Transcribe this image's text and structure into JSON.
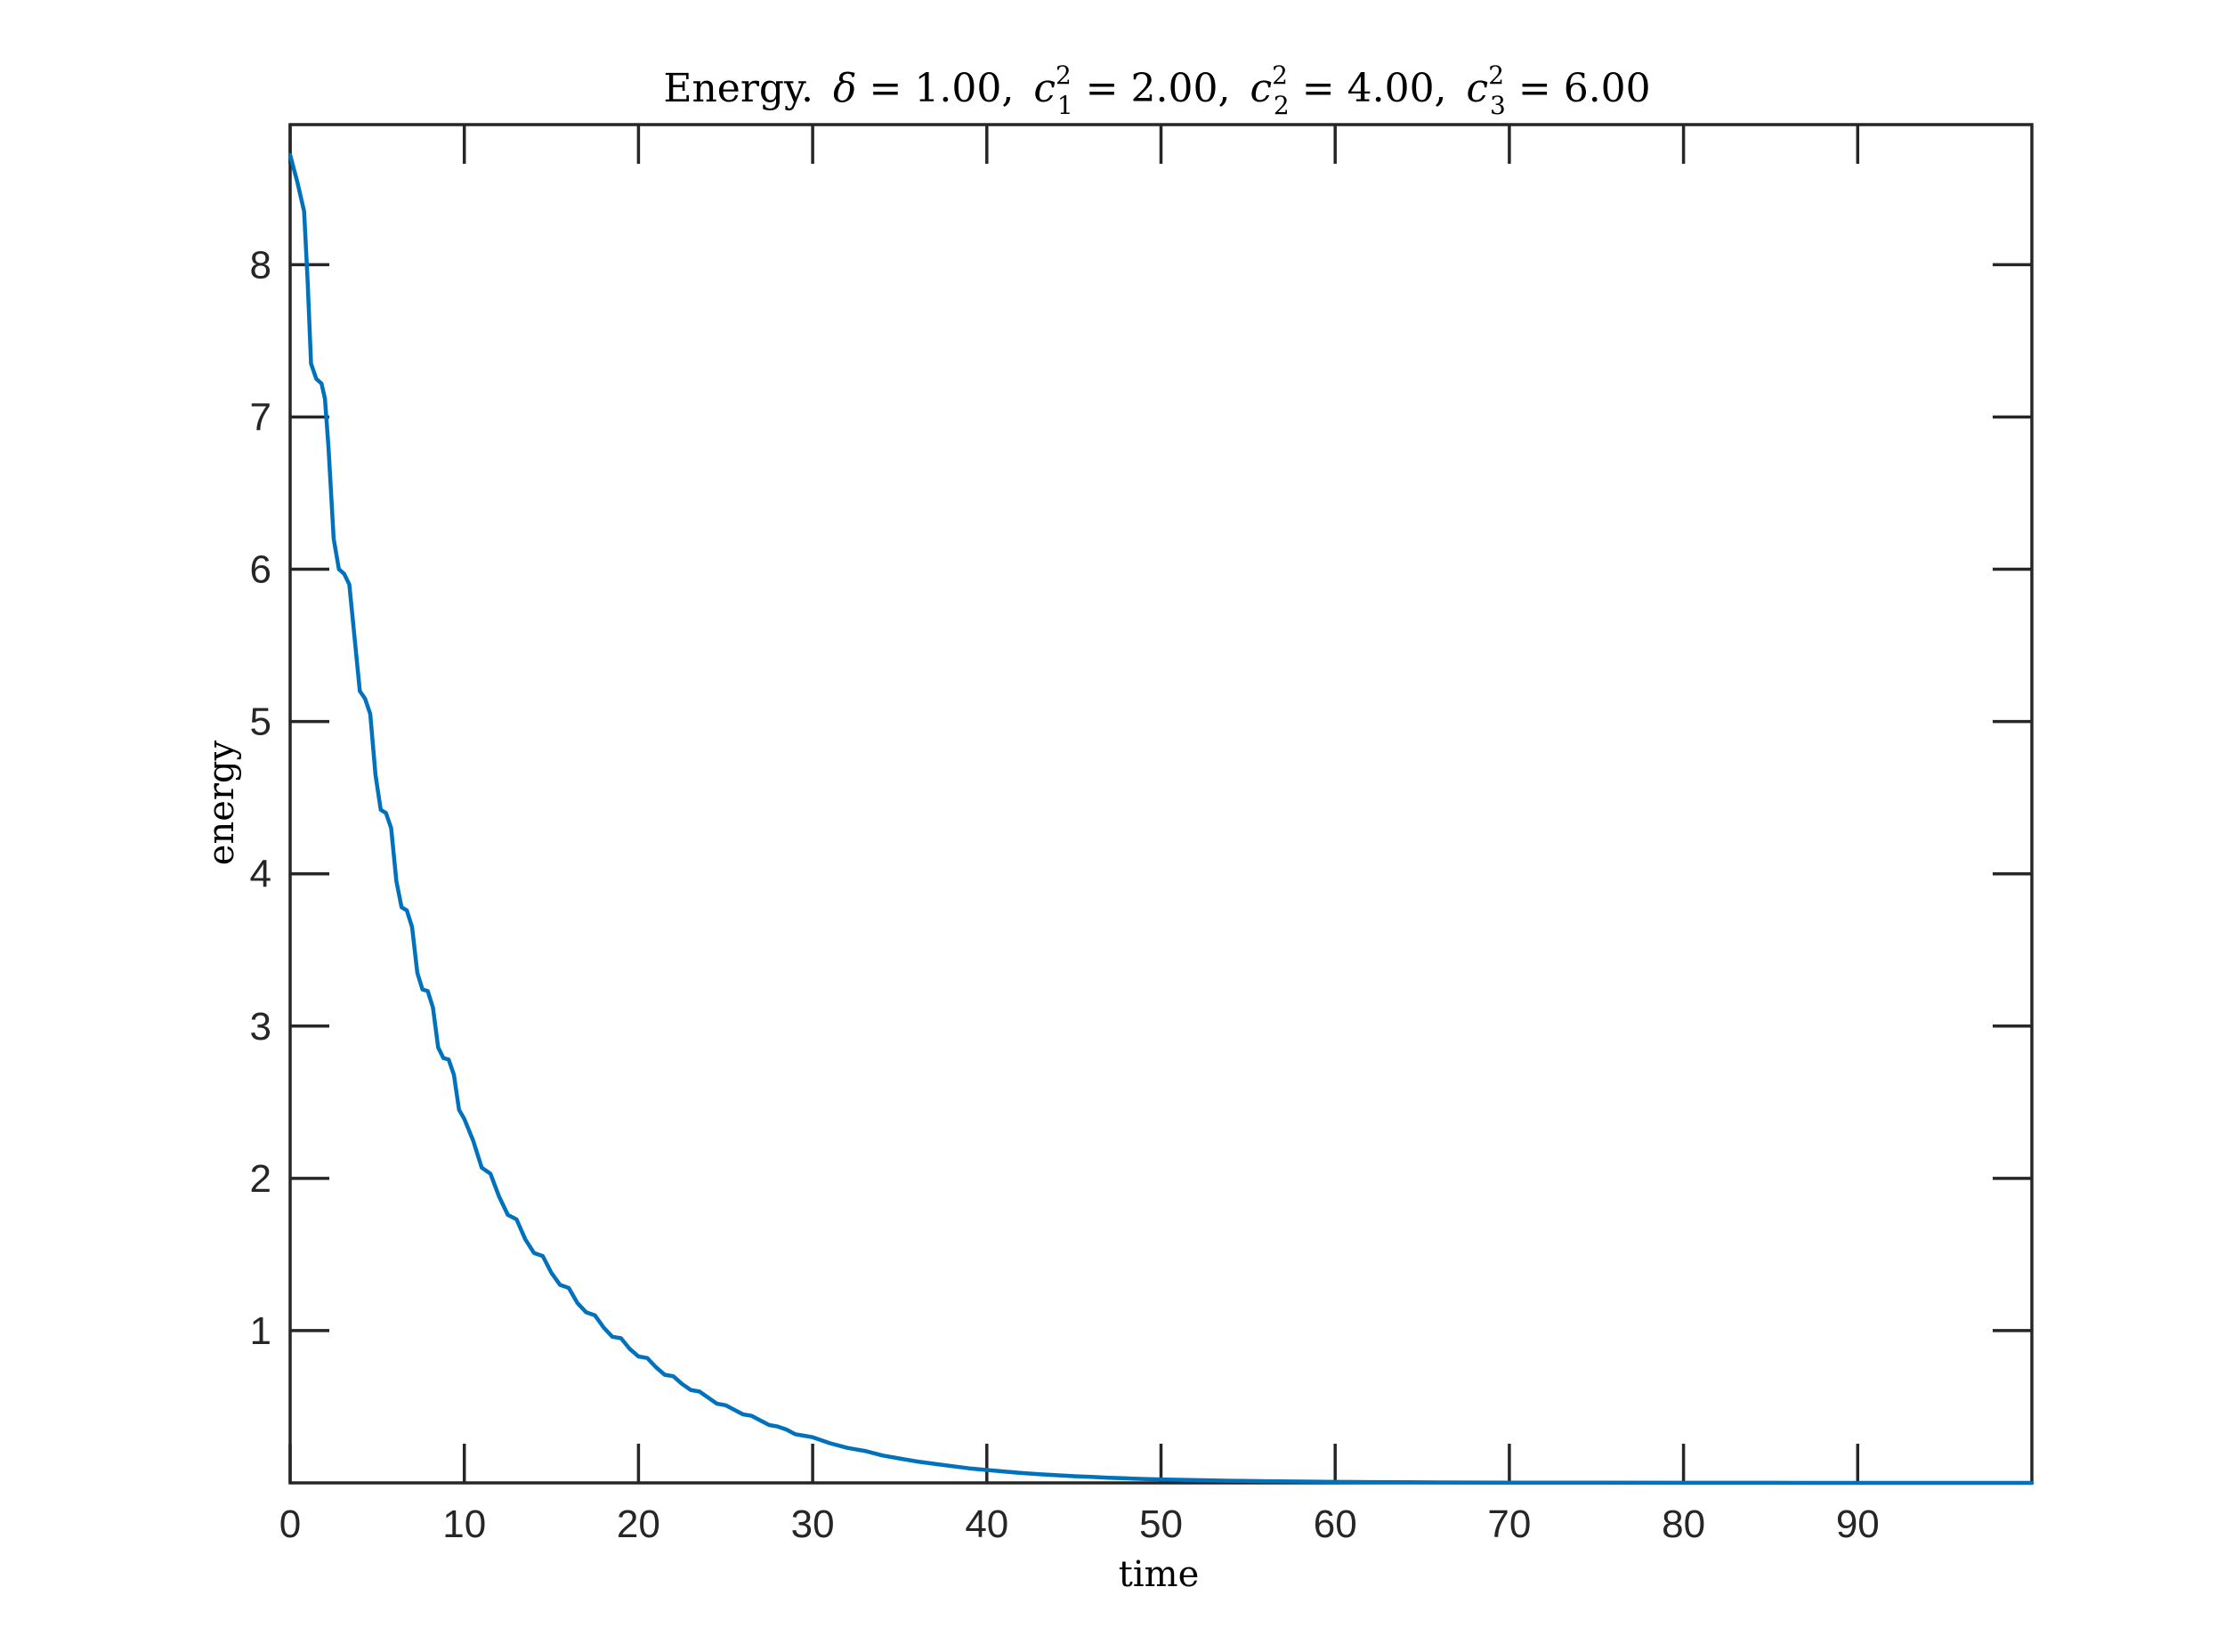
{
  "chart_data": {
    "type": "line",
    "title": {
      "lead": "Energy.",
      "parts": [
        {
          "sym": "δ",
          "sup": "",
          "sub": "",
          "eq": " = 1.00,"
        },
        {
          "sym": "c",
          "sup": "2",
          "sub": "1",
          "eq": " = 2.00,"
        },
        {
          "sym": "c",
          "sup": "2",
          "sub": "2",
          "eq": " = 4.00,"
        },
        {
          "sym": "c",
          "sup": "2",
          "sub": "3",
          "eq": " = 6.00"
        }
      ]
    },
    "xlabel": "time",
    "ylabel": "energy",
    "xlim": [
      0,
      100
    ],
    "ylim": [
      0,
      8.92
    ],
    "xticks": [
      0,
      10,
      20,
      30,
      40,
      50,
      60,
      70,
      80,
      90
    ],
    "xtick_labels": [
      "0",
      "10",
      "20",
      "30",
      "40",
      "50",
      "60",
      "70",
      "80",
      "90"
    ],
    "yticks": [
      1,
      2,
      3,
      4,
      5,
      6,
      7,
      8
    ],
    "ytick_labels": [
      "1",
      "2",
      "3",
      "4",
      "5",
      "6",
      "7",
      "8"
    ],
    "grid": false,
    "series": [
      {
        "color": "#0072BD",
        "x": [
          0,
          0.4,
          0.8,
          1.0,
          1.2,
          1.5,
          1.8,
          2.0,
          2.2,
          2.5,
          2.8,
          3.1,
          3.4,
          3.7,
          4.0,
          4.3,
          4.6,
          4.9,
          5.2,
          5.5,
          5.8,
          6.1,
          6.4,
          6.7,
          7.0,
          7.3,
          7.6,
          7.9,
          8.2,
          8.5,
          8.8,
          9.1,
          9.4,
          9.7,
          10.0,
          10.5,
          11.0,
          11.5,
          12.0,
          12.5,
          13.0,
          13.5,
          14.0,
          14.5,
          15.0,
          15.5,
          16.0,
          16.5,
          17.0,
          17.5,
          18.0,
          18.5,
          19.0,
          19.5,
          20.0,
          20.5,
          21.0,
          21.5,
          22.0,
          22.5,
          23.0,
          23.5,
          24.0,
          24.5,
          25.0,
          25.5,
          26.0,
          26.5,
          27.0,
          27.5,
          28.0,
          28.5,
          29.0,
          29.5,
          30.0,
          31,
          32,
          33,
          34,
          35,
          36,
          37,
          38,
          39,
          40,
          41,
          42,
          43,
          44,
          45,
          46,
          47,
          48,
          49,
          50,
          52,
          54,
          56,
          58,
          60,
          62,
          64,
          66,
          68,
          70,
          75,
          80,
          85,
          90,
          95,
          100
        ],
        "y": [
          8.72,
          8.55,
          8.35,
          7.9,
          7.35,
          7.25,
          7.22,
          7.12,
          6.8,
          6.2,
          6.0,
          5.97,
          5.9,
          5.55,
          5.2,
          5.15,
          5.05,
          4.65,
          4.42,
          4.4,
          4.3,
          3.95,
          3.78,
          3.76,
          3.65,
          3.35,
          3.24,
          3.23,
          3.12,
          2.86,
          2.79,
          2.78,
          2.68,
          2.45,
          2.39,
          2.25,
          2.07,
          2.03,
          1.88,
          1.76,
          1.73,
          1.6,
          1.51,
          1.49,
          1.38,
          1.3,
          1.28,
          1.18,
          1.12,
          1.1,
          1.02,
          0.96,
          0.95,
          0.88,
          0.83,
          0.82,
          0.76,
          0.71,
          0.7,
          0.65,
          0.61,
          0.6,
          0.56,
          0.52,
          0.51,
          0.48,
          0.45,
          0.44,
          0.41,
          0.38,
          0.37,
          0.35,
          0.32,
          0.31,
          0.3,
          0.26,
          0.23,
          0.21,
          0.18,
          0.16,
          0.14,
          0.125,
          0.11,
          0.095,
          0.085,
          0.075,
          0.065,
          0.057,
          0.05,
          0.044,
          0.039,
          0.034,
          0.03,
          0.026,
          0.023,
          0.018,
          0.014,
          0.011,
          0.0085,
          0.0066,
          0.0051,
          0.004,
          0.003,
          0.0024,
          0.0018,
          0.001,
          0.0006,
          0.0003,
          0.0002,
          0.0001,
          5e-05
        ]
      }
    ]
  }
}
